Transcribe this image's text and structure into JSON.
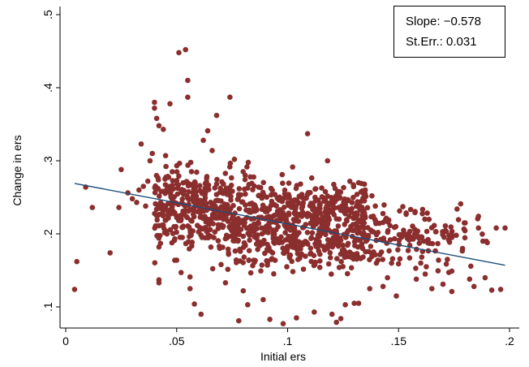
{
  "chart_data": {
    "type": "scatter",
    "xlabel": "Initial ers",
    "ylabel": "Change in ers",
    "xlim": [
      0,
      0.2
    ],
    "ylim": [
      0.1,
      0.5
    ],
    "x_ticks": [
      {
        "value": 0,
        "label": "0"
      },
      {
        "value": 0.05,
        "label": ".05"
      },
      {
        "value": 0.1,
        "label": ".1"
      },
      {
        "value": 0.15,
        "label": ".15"
      },
      {
        "value": 0.2,
        "label": ".2"
      }
    ],
    "y_ticks": [
      {
        "value": 0.1,
        "label": ".1"
      },
      {
        "value": 0.2,
        "label": ".2"
      },
      {
        "value": 0.3,
        "label": ".3"
      },
      {
        "value": 0.4,
        "label": ".4"
      },
      {
        "value": 0.5,
        "label": ".5"
      }
    ],
    "grid": false,
    "marker_color": "#8b2e2e",
    "fit_line_color": "#1f4e79",
    "fit_line": {
      "x": [
        0.004,
        0.198
      ],
      "y": [
        0.269,
        0.157
      ]
    },
    "stats": {
      "slope_label": "Slope:",
      "slope_value": "−0.578",
      "se_label": "St.Err.:",
      "se_value": "0.031"
    },
    "points": [
      [
        0.004,
        0.124
      ],
      [
        0.005,
        0.162
      ],
      [
        0.009,
        0.264
      ],
      [
        0.012,
        0.236
      ],
      [
        0.02,
        0.174
      ],
      [
        0.024,
        0.236
      ],
      [
        0.025,
        0.288
      ],
      [
        0.028,
        0.256
      ],
      [
        0.03,
        0.248
      ],
      [
        0.032,
        0.243
      ],
      [
        0.033,
        0.26
      ],
      [
        0.034,
        0.323
      ],
      [
        0.035,
        0.265
      ],
      [
        0.036,
        0.238
      ],
      [
        0.037,
        0.272
      ],
      [
        0.038,
        0.3
      ],
      [
        0.039,
        0.31
      ],
      [
        0.04,
        0.38
      ],
      [
        0.04,
        0.372
      ],
      [
        0.041,
        0.358
      ],
      [
        0.042,
        0.348
      ],
      [
        0.041,
        0.225
      ],
      [
        0.042,
        0.211
      ],
      [
        0.042,
        0.182
      ],
      [
        0.042,
        0.137
      ],
      [
        0.042,
        0.133
      ],
      [
        0.044,
        0.343
      ],
      [
        0.045,
        0.307
      ],
      [
        0.047,
        0.378
      ],
      [
        0.048,
        0.285
      ],
      [
        0.049,
        0.191
      ],
      [
        0.05,
        0.164
      ],
      [
        0.051,
        0.448
      ],
      [
        0.052,
        0.147
      ],
      [
        0.054,
        0.452
      ],
      [
        0.055,
        0.41
      ],
      [
        0.055,
        0.387
      ],
      [
        0.056,
        0.141
      ],
      [
        0.056,
        0.125
      ],
      [
        0.058,
        0.104
      ],
      [
        0.061,
        0.09
      ],
      [
        0.062,
        0.328
      ],
      [
        0.064,
        0.341
      ],
      [
        0.066,
        0.314
      ],
      [
        0.068,
        0.362
      ],
      [
        0.07,
        0.158
      ],
      [
        0.072,
        0.133
      ],
      [
        0.074,
        0.387
      ],
      [
        0.076,
        0.302
      ],
      [
        0.078,
        0.081
      ],
      [
        0.08,
        0.122
      ],
      [
        0.082,
        0.103
      ],
      [
        0.089,
        0.11
      ],
      [
        0.092,
        0.083
      ],
      [
        0.098,
        0.077
      ],
      [
        0.104,
        0.085
      ],
      [
        0.109,
        0.337
      ],
      [
        0.112,
        0.093
      ],
      [
        0.118,
        0.3
      ],
      [
        0.12,
        0.09
      ],
      [
        0.122,
        0.079
      ],
      [
        0.124,
        0.084
      ],
      [
        0.126,
        0.103
      ],
      [
        0.13,
        0.105
      ],
      [
        0.132,
        0.105
      ],
      [
        0.137,
        0.125
      ],
      [
        0.145,
        0.14
      ],
      [
        0.149,
        0.115
      ],
      [
        0.155,
        0.167
      ],
      [
        0.16,
        0.16
      ],
      [
        0.168,
        0.164
      ],
      [
        0.172,
        0.165
      ],
      [
        0.176,
        0.198
      ],
      [
        0.178,
        0.241
      ],
      [
        0.18,
        0.215
      ],
      [
        0.182,
        0.138
      ],
      [
        0.184,
        0.128
      ],
      [
        0.186,
        0.208
      ],
      [
        0.188,
        0.19
      ],
      [
        0.19,
        0.188
      ],
      [
        0.192,
        0.123
      ],
      [
        0.194,
        0.208
      ],
      [
        0.196,
        0.124
      ],
      [
        0.198,
        0.208
      ],
      [
        0.186,
        0.224
      ],
      [
        0.189,
        0.14
      ],
      [
        0.174,
        0.121
      ],
      [
        0.17,
        0.131
      ],
      [
        0.165,
        0.125
      ],
      [
        0.162,
        0.145
      ],
      [
        0.158,
        0.138
      ],
      [
        0.15,
        0.159
      ],
      [
        0.143,
        0.128
      ],
      [
        0.14,
        0.16
      ],
      [
        0.138,
        0.252
      ],
      [
        0.135,
        0.26
      ],
      [
        0.132,
        0.27
      ]
    ],
    "cluster_clouds": [
      {
        "x_range": [
          0.04,
          0.075
        ],
        "y_center": 0.245,
        "y_spread": 0.03,
        "count": 260
      },
      {
        "x_range": [
          0.04,
          0.075
        ],
        "y_center": 0.205,
        "y_spread": 0.028,
        "count": 80
      },
      {
        "x_range": [
          0.075,
          0.105
        ],
        "y_center": 0.2,
        "y_spread": 0.034,
        "count": 240
      },
      {
        "x_range": [
          0.075,
          0.105
        ],
        "y_center": 0.248,
        "y_spread": 0.03,
        "count": 90
      },
      {
        "x_range": [
          0.105,
          0.135
        ],
        "y_center": 0.205,
        "y_spread": 0.034,
        "count": 230
      },
      {
        "x_range": [
          0.105,
          0.135
        ],
        "y_center": 0.24,
        "y_spread": 0.025,
        "count": 100
      },
      {
        "x_range": [
          0.135,
          0.165
        ],
        "y_center": 0.2,
        "y_spread": 0.03,
        "count": 110
      },
      {
        "x_range": [
          0.165,
          0.19
        ],
        "y_center": 0.19,
        "y_spread": 0.028,
        "count": 35
      }
    ]
  }
}
